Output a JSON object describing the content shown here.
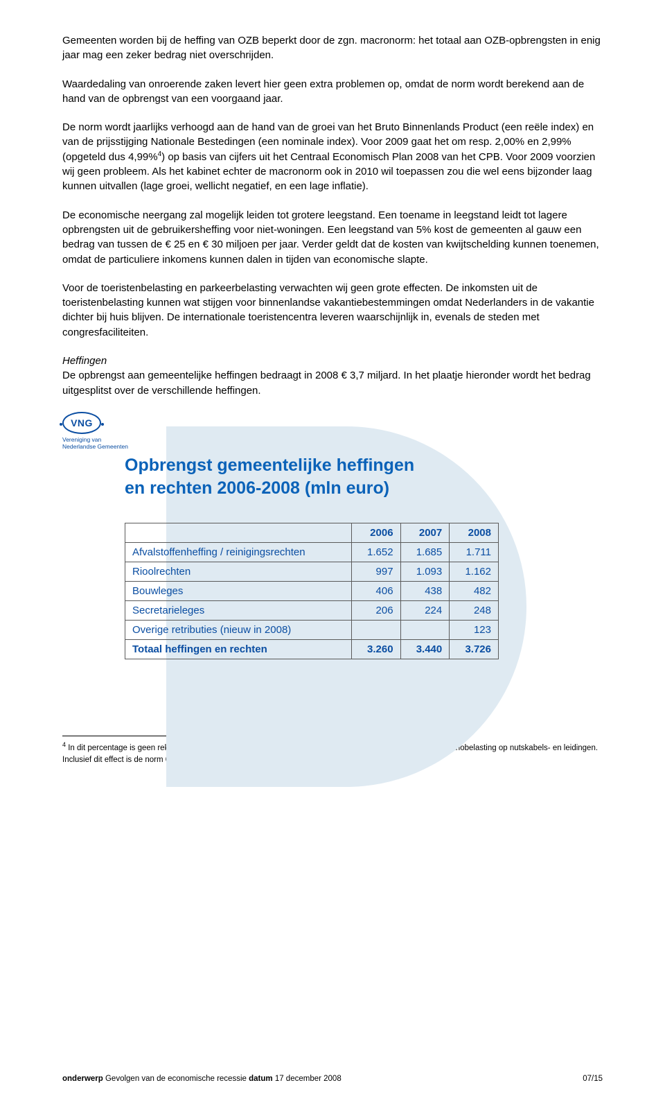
{
  "paragraphs": {
    "p1": "Gemeenten worden bij de heffing van OZB beperkt door de zgn. macronorm: het totaal aan OZB-opbrengsten in enig jaar mag een zeker bedrag niet overschrijden.",
    "p2": "Waardedaling van onroerende zaken levert hier geen extra problemen op, omdat de norm wordt berekend aan de hand van de opbrengst van een voorgaand jaar.",
    "p3a": "De norm wordt jaarlijks verhoogd aan de hand van de groei van het Bruto Binnenlands Product (een reële index) en van de prijsstijging Nationale Bestedingen (een nominale index). Voor 2009 gaat het om resp. 2,00% en 2,99% (opgeteld dus 4,99%",
    "p3sup": "4",
    "p3b": ") op basis van cijfers uit het Centraal Economisch Plan 2008 van het CPB. Voor 2009 voorzien wij geen probleem. Als het kabinet echter de macronorm ook in 2010 wil toepassen zou die wel eens bijzonder laag kunnen uitvallen (lage groei, wellicht negatief, en een lage inflatie).",
    "p4": "De economische neergang zal mogelijk leiden tot grotere leegstand. Een toename in leegstand leidt tot lagere opbrengsten uit de gebruikersheffing voor niet-woningen. Een leegstand van 5% kost de gemeenten al gauw een bedrag van tussen de € 25 en € 30 miljoen per jaar. Verder geldt dat de kosten van kwijtschelding kunnen toenemen, omdat de particuliere inkomens kunnen dalen in tijden van economische slapte.",
    "p5": "Voor de toeristenbelasting en parkeerbelasting verwachten wij geen grote effecten. De inkomsten uit de toeristenbelasting kunnen wat stijgen voor binnenlandse vakantiebestemmingen omdat Nederlanders in de vakantie dichter bij huis blijven. De internationale toeristencentra leveren waarschijnlijk in, evenals de steden met congresfaciliteiten.",
    "hef_h": "Heffingen",
    "hef_p": "De opbrengst aan gemeentelijke heffingen bedraagt in 2008 € 3,7 miljard. In het plaatje hieronder wordt het bedrag uitgesplitst over de verschillende heffingen."
  },
  "logo": {
    "text": "VNG",
    "sub1": "Vereniging van",
    "sub2": "Nederlandse Gemeenten"
  },
  "chart": {
    "title1": "Opbrengst gemeentelijke heffingen",
    "title2": "en rechten 2006-2008 (mln euro)",
    "bg_color": "#dfeaf2",
    "text_color": "#0b4ea2"
  },
  "table": {
    "headers": [
      "",
      "2006",
      "2007",
      "2008"
    ],
    "rows": [
      {
        "label": "Afvalstoffenheffing / reinigingsrechten",
        "v": [
          "1.652",
          "1.685",
          "1.711"
        ]
      },
      {
        "label": "Rioolrechten",
        "v": [
          "997",
          "1.093",
          "1.162"
        ]
      },
      {
        "label": "Bouwleges",
        "v": [
          "406",
          "438",
          "482"
        ]
      },
      {
        "label": "Secretarieleges",
        "v": [
          "206",
          "224",
          "248"
        ]
      },
      {
        "label": "Overige retributies (nieuw in 2008)",
        "v": [
          "",
          "",
          "123"
        ]
      }
    ],
    "total": {
      "label": "Totaal heffingen en rechten",
      "v": [
        "3.260",
        "3.440",
        "3.726"
      ]
    }
  },
  "footnote": {
    "num": "4",
    "text": " In dit percentage is geen rekening gehouden met het effect op de macronorm van de afschaffing van de precariobelasting op nutskabels- en leidingen. Inclusief dit effect is de norm 6,11%."
  },
  "footer": {
    "onderwerp_lbl": "onderwerp ",
    "onderwerp": "Gevolgen van de economische recessie ",
    "datum_lbl": "datum ",
    "datum": "17 december 2008",
    "page": "07/15"
  }
}
